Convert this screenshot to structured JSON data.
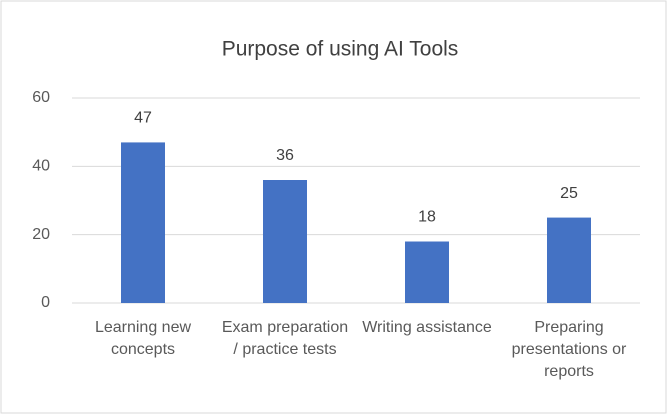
{
  "chart_data": {
    "type": "bar",
    "title": "Purpose of using AI Tools",
    "categories": [
      "Learning new concepts",
      "Exam preparation / practice tests",
      "Writing assistance",
      "Preparing presentations or reports"
    ],
    "values": [
      47,
      36,
      18,
      25
    ],
    "color": "#4472c4",
    "ylim": [
      0,
      60
    ],
    "yticks": [
      0,
      20,
      40,
      60
    ],
    "grid": true
  }
}
